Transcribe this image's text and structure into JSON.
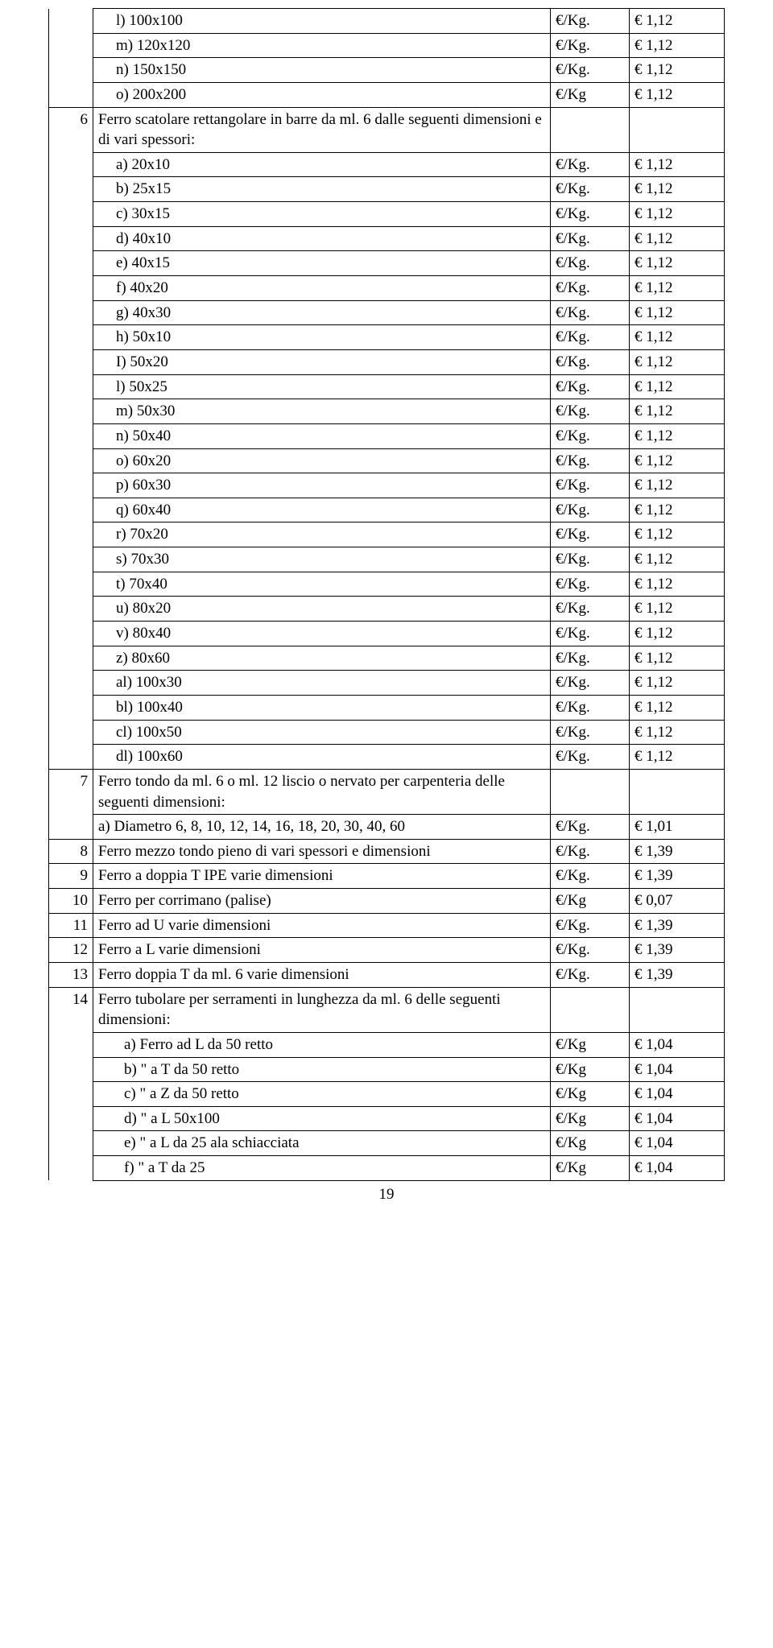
{
  "page_number": "19",
  "rows": [
    {
      "num": "",
      "desc": "l) 100x100",
      "desc_class": "indent-a",
      "unit": "€/Kg.",
      "price": "€ 1,12",
      "num_border": "no-top-border no-bottom-border"
    },
    {
      "num": "",
      "desc": "m) 120x120",
      "desc_class": "indent-a",
      "unit": "€/Kg.",
      "price": "€ 1,12",
      "num_border": "no-top-border no-bottom-border"
    },
    {
      "num": "",
      "desc": "n) 150x150",
      "desc_class": "indent-a",
      "unit": "€/Kg.",
      "price": "€ 1,12",
      "num_border": "no-top-border no-bottom-border"
    },
    {
      "num": "",
      "desc": "o) 200x200",
      "desc_class": "indent-a",
      "unit": "€/Kg",
      "price": "€ 1,12",
      "num_border": "no-top-border"
    },
    {
      "num": "6",
      "desc": "Ferro scatolare rettangolare in barre da ml. 6 dalle seguenti dimensioni e di vari spessori:",
      "desc_class": "",
      "unit": "",
      "price": "",
      "num_border": "no-bottom-border"
    },
    {
      "num": "",
      "desc": "a)  20x10",
      "desc_class": "indent-a",
      "unit": "€/Kg.",
      "price": "€ 1,12",
      "num_border": "no-top-border no-bottom-border"
    },
    {
      "num": "",
      "desc": "b)  25x15",
      "desc_class": "indent-a",
      "unit": "€/Kg.",
      "price": "€ 1,12",
      "num_border": "no-top-border no-bottom-border"
    },
    {
      "num": "",
      "desc": "c)  30x15",
      "desc_class": "indent-a",
      "unit": "€/Kg.",
      "price": "€ 1,12",
      "num_border": "no-top-border no-bottom-border"
    },
    {
      "num": "",
      "desc": "d)  40x10",
      "desc_class": "indent-a",
      "unit": "€/Kg.",
      "price": "€ 1,12",
      "num_border": "no-top-border no-bottom-border"
    },
    {
      "num": "",
      "desc": "e)  40x15",
      "desc_class": "indent-a",
      "unit": "€/Kg.",
      "price": "€ 1,12",
      "num_border": "no-top-border no-bottom-border"
    },
    {
      "num": "",
      "desc": "f)  40x20",
      "desc_class": "indent-a",
      "unit": "€/Kg.",
      "price": "€ 1,12",
      "num_border": "no-top-border no-bottom-border"
    },
    {
      "num": "",
      "desc": "g)  40x30",
      "desc_class": "indent-a",
      "unit": "€/Kg.",
      "price": "€ 1,12",
      "num_border": "no-top-border no-bottom-border"
    },
    {
      "num": "",
      "desc": "h)  50x10",
      "desc_class": "indent-a",
      "unit": "€/Kg.",
      "price": "€ 1,12",
      "num_border": "no-top-border no-bottom-border"
    },
    {
      "num": "",
      "desc": "I)  50x20",
      "desc_class": "indent-a",
      "unit": "€/Kg.",
      "price": "€ 1,12",
      "num_border": "no-top-border no-bottom-border"
    },
    {
      "num": "",
      "desc": "l)  50x25",
      "desc_class": "indent-a",
      "unit": "€/Kg.",
      "price": "€ 1,12",
      "num_border": "no-top-border no-bottom-border"
    },
    {
      "num": "",
      "desc": "m) 50x30",
      "desc_class": "indent-a",
      "unit": "€/Kg.",
      "price": "€ 1,12",
      "num_border": "no-top-border no-bottom-border"
    },
    {
      "num": "",
      "desc": "n)  50x40",
      "desc_class": "indent-a",
      "unit": "€/Kg.",
      "price": "€ 1,12",
      "num_border": "no-top-border no-bottom-border"
    },
    {
      "num": "",
      "desc": "o)  60x20",
      "desc_class": "indent-a",
      "unit": "€/Kg.",
      "price": "€ 1,12",
      "num_border": "no-top-border no-bottom-border"
    },
    {
      "num": "",
      "desc": "p)  60x30",
      "desc_class": "indent-a",
      "unit": "€/Kg.",
      "price": "€ 1,12",
      "num_border": "no-top-border no-bottom-border"
    },
    {
      "num": "",
      "desc": "q)  60x40",
      "desc_class": "indent-a",
      "unit": "€/Kg.",
      "price": "€ 1,12",
      "num_border": "no-top-border no-bottom-border"
    },
    {
      "num": "",
      "desc": "r)  70x20",
      "desc_class": "indent-a",
      "unit": "€/Kg.",
      "price": "€ 1,12",
      "num_border": "no-top-border no-bottom-border"
    },
    {
      "num": "",
      "desc": "s)  70x30",
      "desc_class": "indent-a",
      "unit": "€/Kg.",
      "price": "€ 1,12",
      "num_border": "no-top-border no-bottom-border"
    },
    {
      "num": "",
      "desc": "t)  70x40",
      "desc_class": "indent-a",
      "unit": "€/Kg.",
      "price": "€ 1,12",
      "num_border": "no-top-border no-bottom-border"
    },
    {
      "num": "",
      "desc": "u)  80x20",
      "desc_class": "indent-a",
      "unit": "€/Kg.",
      "price": "€ 1,12",
      "num_border": "no-top-border no-bottom-border"
    },
    {
      "num": "",
      "desc": "v)  80x40",
      "desc_class": "indent-a",
      "unit": "€/Kg.",
      "price": "€ 1,12",
      "num_border": "no-top-border no-bottom-border"
    },
    {
      "num": "",
      "desc": "z)  80x60",
      "desc_class": "indent-a",
      "unit": "€/Kg.",
      "price": "€ 1,12",
      "num_border": "no-top-border no-bottom-border"
    },
    {
      "num": "",
      "desc": "al) 100x30",
      "desc_class": "indent-a",
      "unit": "€/Kg.",
      "price": "€ 1,12",
      "num_border": "no-top-border no-bottom-border"
    },
    {
      "num": "",
      "desc": "bl) 100x40",
      "desc_class": "indent-a",
      "unit": "€/Kg.",
      "price": "€ 1,12",
      "num_border": "no-top-border no-bottom-border"
    },
    {
      "num": "",
      "desc": "cl) 100x50",
      "desc_class": "indent-a",
      "unit": "€/Kg.",
      "price": "€ 1,12",
      "num_border": "no-top-border no-bottom-border"
    },
    {
      "num": "",
      "desc": "dl) 100x60",
      "desc_class": "indent-a",
      "unit": "€/Kg.",
      "price": "€ 1,12",
      "num_border": "no-top-border"
    },
    {
      "num": "7",
      "desc": "Ferro tondo da ml. 6 o ml. 12 liscio o nervato per carpenteria delle seguenti dimensioni:",
      "desc_class": "",
      "unit": "",
      "price": "",
      "num_border": "no-bottom-border"
    },
    {
      "num": "",
      "desc": "a) Diametro 6, 8, 10, 12, 14, 16, 18, 20, 30, 40, 60",
      "desc_class": "",
      "unit": "€/Kg.",
      "price": "€ 1,01",
      "num_border": "no-top-border"
    },
    {
      "num": "8",
      "desc": "Ferro mezzo tondo pieno di vari spessori e dimensioni",
      "desc_class": "",
      "unit": "€/Kg.",
      "price": "€ 1,39",
      "num_border": ""
    },
    {
      "num": "9",
      "desc": "Ferro a doppia T IPE varie dimensioni",
      "desc_class": "",
      "unit": "€/Kg.",
      "price": "€ 1,39",
      "num_border": ""
    },
    {
      "num": "10",
      "desc": "Ferro per corrimano (palise)",
      "desc_class": "",
      "unit": "€/Kg",
      "price": "€ 0,07",
      "num_border": ""
    },
    {
      "num": "11",
      "desc": "Ferro ad U varie dimensioni",
      "desc_class": "",
      "unit": "€/Kg.",
      "price": "€ 1,39",
      "num_border": ""
    },
    {
      "num": "12",
      "desc": "Ferro a L varie dimensioni",
      "desc_class": "",
      "unit": "€/Kg.",
      "price": "€ 1,39",
      "num_border": ""
    },
    {
      "num": "13",
      "desc": "Ferro doppia  T da ml. 6 varie dimensioni",
      "desc_class": "",
      "unit": "€/Kg.",
      "price": "€ 1,39",
      "num_border": ""
    },
    {
      "num": "14",
      "desc": "Ferro tubolare per serramenti in lunghezza da ml. 6 delle seguenti dimensioni:",
      "desc_class": "",
      "unit": "",
      "price": "",
      "num_border": "no-bottom-border"
    },
    {
      "num": "",
      "desc": "a) Ferro ad L da 50 retto",
      "desc_class": "indent-b",
      "unit": "€/Kg",
      "price": "€ 1,04",
      "num_border": "no-top-border no-bottom-border"
    },
    {
      "num": "",
      "desc": "b)     \"    a   T da 50 retto",
      "desc_class": "indent-b",
      "unit": "€/Kg",
      "price": "€ 1,04",
      "num_border": "no-top-border no-bottom-border"
    },
    {
      "num": "",
      "desc": "c)     \"    a   Z da 50 retto",
      "desc_class": "indent-b",
      "unit": "€/Kg",
      "price": "€ 1,04",
      "num_border": "no-top-border no-bottom-border"
    },
    {
      "num": "",
      "desc": "d)     \"    a   L 50x100",
      "desc_class": "indent-b",
      "unit": "€/Kg",
      "price": "€ 1,04",
      "num_border": "no-top-border no-bottom-border"
    },
    {
      "num": "",
      "desc": "e)     \"    a   L da 25 ala schiacciata",
      "desc_class": "indent-b",
      "unit": "€/Kg",
      "price": "€ 1,04",
      "num_border": "no-top-border no-bottom-border"
    },
    {
      "num": "",
      "desc": "f)     \"    a   T da 25",
      "desc_class": "indent-b",
      "unit": "€/Kg",
      "price": "€ 1,04",
      "num_border": "no-top-border no-bottom-border"
    }
  ]
}
